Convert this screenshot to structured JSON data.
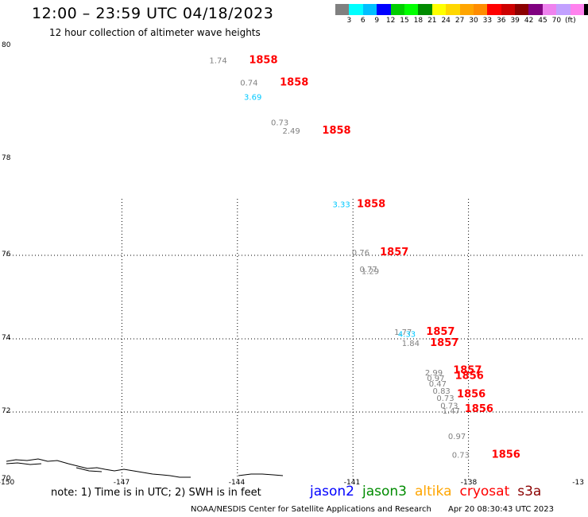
{
  "header": {
    "title": "12:00 – 23:59 UTC 04/18/2023",
    "subtitle": "12 hour collection of altimeter wave heights"
  },
  "colorbar": {
    "colors": [
      "#808080",
      "#00ffff",
      "#00bfff",
      "#0000ff",
      "#00cd00",
      "#00ff00",
      "#008b00",
      "#ffff00",
      "#ffd700",
      "#ffa500",
      "#ff8c00",
      "#ff0000",
      "#cd0000",
      "#8b0000",
      "#800080",
      "#ee82ee",
      "#c2a0ff",
      "#ff82ee",
      "#000000"
    ],
    "labels": [
      "3",
      "6",
      "9",
      "12",
      "15",
      "18",
      "21",
      "24",
      "27",
      "30",
      "33",
      "36",
      "39",
      "42",
      "45",
      "70",
      "(ft)"
    ]
  },
  "map": {
    "lat_labels": [
      "80",
      "78",
      "76",
      "74",
      "72",
      "70"
    ],
    "lon_labels": [
      "-150",
      "-147",
      "-144",
      "-141",
      "-138",
      "-13"
    ],
    "observations": [
      {
        "lon": -144.5,
        "lat": 79.7,
        "swh": "1.74",
        "color": "#808080"
      },
      {
        "lon": -143.7,
        "lat": 79.3,
        "swh": "0.74",
        "color": "#808080"
      },
      {
        "lon": -143.6,
        "lat": 79.05,
        "swh": "3.69",
        "color": "#00c8ff"
      },
      {
        "lon": -142.9,
        "lat": 78.6,
        "swh": "0.73",
        "color": "#808080"
      },
      {
        "lon": -142.6,
        "lat": 78.45,
        "swh": "2.49",
        "color": "#808080"
      },
      {
        "lon": -141.3,
        "lat": 77.0,
        "swh": "3.33",
        "color": "#00c8ff"
      },
      {
        "lon": -140.8,
        "lat": 76.0,
        "swh": "0.76",
        "color": "#808080"
      },
      {
        "lon": -140.6,
        "lat": 75.6,
        "swh": "0.77",
        "color": "#808080"
      },
      {
        "lon": -140.55,
        "lat": 75.55,
        "swh": "1.29",
        "color": "#808080"
      },
      {
        "lon": -139.7,
        "lat": 74.1,
        "swh": "1.77",
        "color": "#808080"
      },
      {
        "lon": -139.6,
        "lat": 74.05,
        "swh": "4.33",
        "color": "#00c8ff"
      },
      {
        "lon": -139.5,
        "lat": 73.8,
        "swh": "1.84",
        "color": "#808080"
      },
      {
        "lon": -138.9,
        "lat": 73.0,
        "swh": "2.99",
        "color": "#808080"
      },
      {
        "lon": -138.85,
        "lat": 72.85,
        "swh": "0.97",
        "color": "#808080"
      },
      {
        "lon": -138.8,
        "lat": 72.7,
        "swh": "0.47",
        "color": "#808080"
      },
      {
        "lon": -138.7,
        "lat": 72.5,
        "swh": "0.83",
        "color": "#808080"
      },
      {
        "lon": -138.6,
        "lat": 72.3,
        "swh": "0.73",
        "color": "#808080"
      },
      {
        "lon": -138.5,
        "lat": 72.1,
        "swh": "0.73",
        "color": "#808080"
      },
      {
        "lon": -138.45,
        "lat": 71.95,
        "swh": "1.47",
        "color": "#808080"
      },
      {
        "lon": -138.3,
        "lat": 71.2,
        "swh": "0.97",
        "color": "#808080"
      },
      {
        "lon": -138.2,
        "lat": 70.65,
        "swh": "0.73",
        "color": "#808080"
      }
    ],
    "times": [
      {
        "lon": -143.7,
        "lat": 79.7,
        "text": "1858"
      },
      {
        "lon": -142.9,
        "lat": 79.3,
        "text": "1858"
      },
      {
        "lon": -141.8,
        "lat": 78.45,
        "text": "1858"
      },
      {
        "lon": -140.9,
        "lat": 77.0,
        "text": "1858"
      },
      {
        "lon": -140.3,
        "lat": 76.0,
        "text": "1857"
      },
      {
        "lon": -139.1,
        "lat": 74.1,
        "text": "1857"
      },
      {
        "lon": -139.0,
        "lat": 73.8,
        "text": "1857"
      },
      {
        "lon": -138.4,
        "lat": 73.05,
        "text": "1857"
      },
      {
        "lon": -138.35,
        "lat": 72.9,
        "text": "1856"
      },
      {
        "lon": -138.3,
        "lat": 72.4,
        "text": "1856"
      },
      {
        "lon": -138.1,
        "lat": 72.0,
        "text": "1856"
      },
      {
        "lon": -137.4,
        "lat": 70.65,
        "text": "1856"
      }
    ]
  },
  "footer": {
    "note": "note: 1) Time is in UTC; 2) SWH is in feet",
    "missions": [
      {
        "name": "jason2",
        "color": "#0000ff"
      },
      {
        "name": "jason3",
        "color": "#008b00"
      },
      {
        "name": "altika",
        "color": "#ffa500"
      },
      {
        "name": "cryosat",
        "color": "#ff0000"
      },
      {
        "name": "s3a",
        "color": "#8b0000"
      }
    ],
    "credit": "NOAA/NESDIS Center for Satellite Applications and Research",
    "timestamp": "Apr 20 08:30:43 UTC 2023"
  }
}
